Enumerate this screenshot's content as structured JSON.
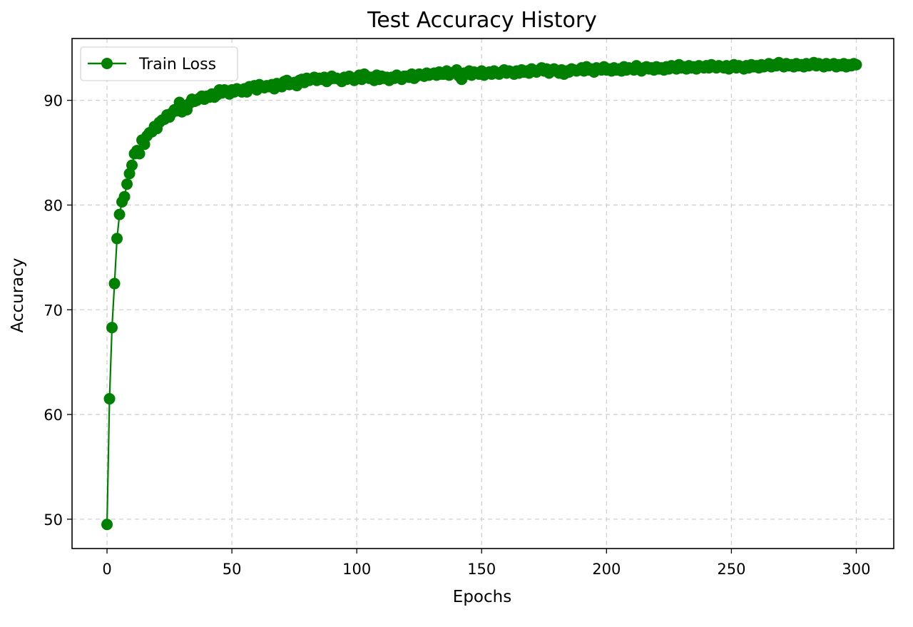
{
  "chart_data": {
    "type": "line",
    "title": "Test Accuracy History",
    "xlabel": "Epochs",
    "ylabel": "Accuracy",
    "xlim": [
      -14,
      315
    ],
    "ylim": [
      47.2,
      95.9
    ],
    "xticks": [
      0,
      50,
      100,
      150,
      200,
      250,
      300
    ],
    "yticks": [
      50,
      60,
      70,
      80,
      90
    ],
    "grid": true,
    "legend": {
      "position": "upper-left"
    },
    "series": [
      {
        "name": "Train Loss",
        "color": "#008000",
        "marker": "circle",
        "x_start": 0,
        "x_step": 1,
        "values": [
          49.5,
          61.5,
          68.3,
          72.5,
          76.8,
          79.1,
          80.3,
          80.8,
          82.0,
          83.0,
          83.8,
          84.9,
          85.2,
          84.9,
          86.2,
          85.8,
          86.6,
          86.9,
          87.0,
          87.5,
          87.3,
          87.9,
          88.1,
          88.2,
          88.6,
          88.4,
          88.8,
          89.1,
          89.0,
          89.8,
          88.9,
          89.5,
          89.1,
          89.7,
          90.1,
          89.9,
          90.0,
          90.2,
          90.4,
          90.1,
          90.4,
          90.3,
          90.6,
          90.3,
          90.5,
          91.0,
          90.7,
          91.0,
          90.9,
          90.6,
          91.0,
          90.8,
          91.1,
          91.0,
          90.8,
          91.1,
          90.8,
          91.3,
          91.2,
          91.4,
          91.0,
          91.5,
          91.3,
          91.2,
          91.4,
          91.3,
          91.5,
          91.1,
          91.6,
          91.4,
          91.3,
          91.8,
          91.9,
          91.5,
          91.6,
          91.7,
          91.4,
          91.9,
          92.0,
          91.7,
          92.1,
          91.9,
          92.0,
          92.2,
          91.9,
          92.1,
          92.0,
          92.2,
          91.8,
          92.0,
          92.3,
          92.1,
          92.1,
          92.0,
          91.8,
          92.2,
          92.0,
          92.3,
          92.1,
          91.9,
          92.2,
          92.4,
          92.0,
          92.5,
          92.3,
          92.1,
          92.2,
          91.9,
          92.4,
          92.0,
          92.3,
          92.1,
          92.2,
          91.9,
          92.2,
          92.1,
          92.4,
          92.2,
          92.0,
          92.3,
          92.3,
          92.2,
          92.5,
          92.1,
          92.3,
          92.5,
          92.4,
          92.3,
          92.6,
          92.4,
          92.5,
          92.6,
          92.4,
          92.7,
          92.5,
          92.5,
          92.8,
          92.4,
          92.6,
          92.7,
          92.9,
          92.3,
          92.0,
          92.6,
          92.5,
          92.8,
          92.4,
          92.7,
          92.6,
          92.5,
          92.8,
          92.4,
          92.6,
          92.7,
          92.5,
          92.8,
          92.6,
          92.5,
          92.7,
          92.9,
          92.6,
          92.8,
          92.7,
          92.5,
          92.8,
          92.6,
          92.9,
          92.7,
          92.8,
          92.6,
          93.0,
          92.8,
          92.7,
          92.9,
          93.1,
          92.8,
          93.0,
          92.6,
          92.9,
          93.0,
          92.8,
          92.6,
          92.9,
          92.5,
          92.8,
          92.7,
          93.0,
          92.9,
          92.8,
          92.9,
          93.1,
          92.8,
          93.2,
          92.9,
          93.0,
          92.7,
          93.1,
          93.0,
          92.9,
          93.2,
          92.9,
          93.0,
          92.8,
          93.1,
          92.9,
          93.0,
          92.8,
          93.2,
          92.9,
          93.1,
          93.0,
          92.9,
          93.3,
          93.0,
          92.8,
          93.1,
          93.2,
          93.0,
          93.1,
          92.9,
          93.2,
          93.0,
          93.1,
          92.9,
          93.2,
          93.0,
          93.3,
          93.1,
          93.0,
          93.4,
          93.1,
          93.2,
          93.0,
          93.3,
          93.1,
          93.2,
          93.0,
          93.3,
          93.2,
          93.1,
          93.3,
          93.1,
          93.4,
          93.2,
          93.1,
          93.3,
          93.2,
          93.1,
          93.3,
          93.0,
          93.2,
          93.4,
          93.1,
          93.3,
          93.2,
          93.0,
          93.3,
          93.1,
          93.4,
          93.2,
          93.3,
          93.1,
          93.4,
          93.2,
          93.3,
          93.5,
          93.2,
          93.4,
          93.3,
          93.6,
          93.4,
          93.2,
          93.5,
          93.3,
          93.4,
          93.2,
          93.5,
          93.3,
          93.4,
          93.2,
          93.5,
          93.3,
          93.4,
          93.6,
          93.3,
          93.5,
          93.4,
          93.2,
          93.5,
          93.3,
          93.4,
          93.5,
          93.2,
          93.4,
          93.3,
          93.5,
          93.2,
          93.4,
          93.3,
          93.5,
          93.4
        ]
      }
    ]
  }
}
